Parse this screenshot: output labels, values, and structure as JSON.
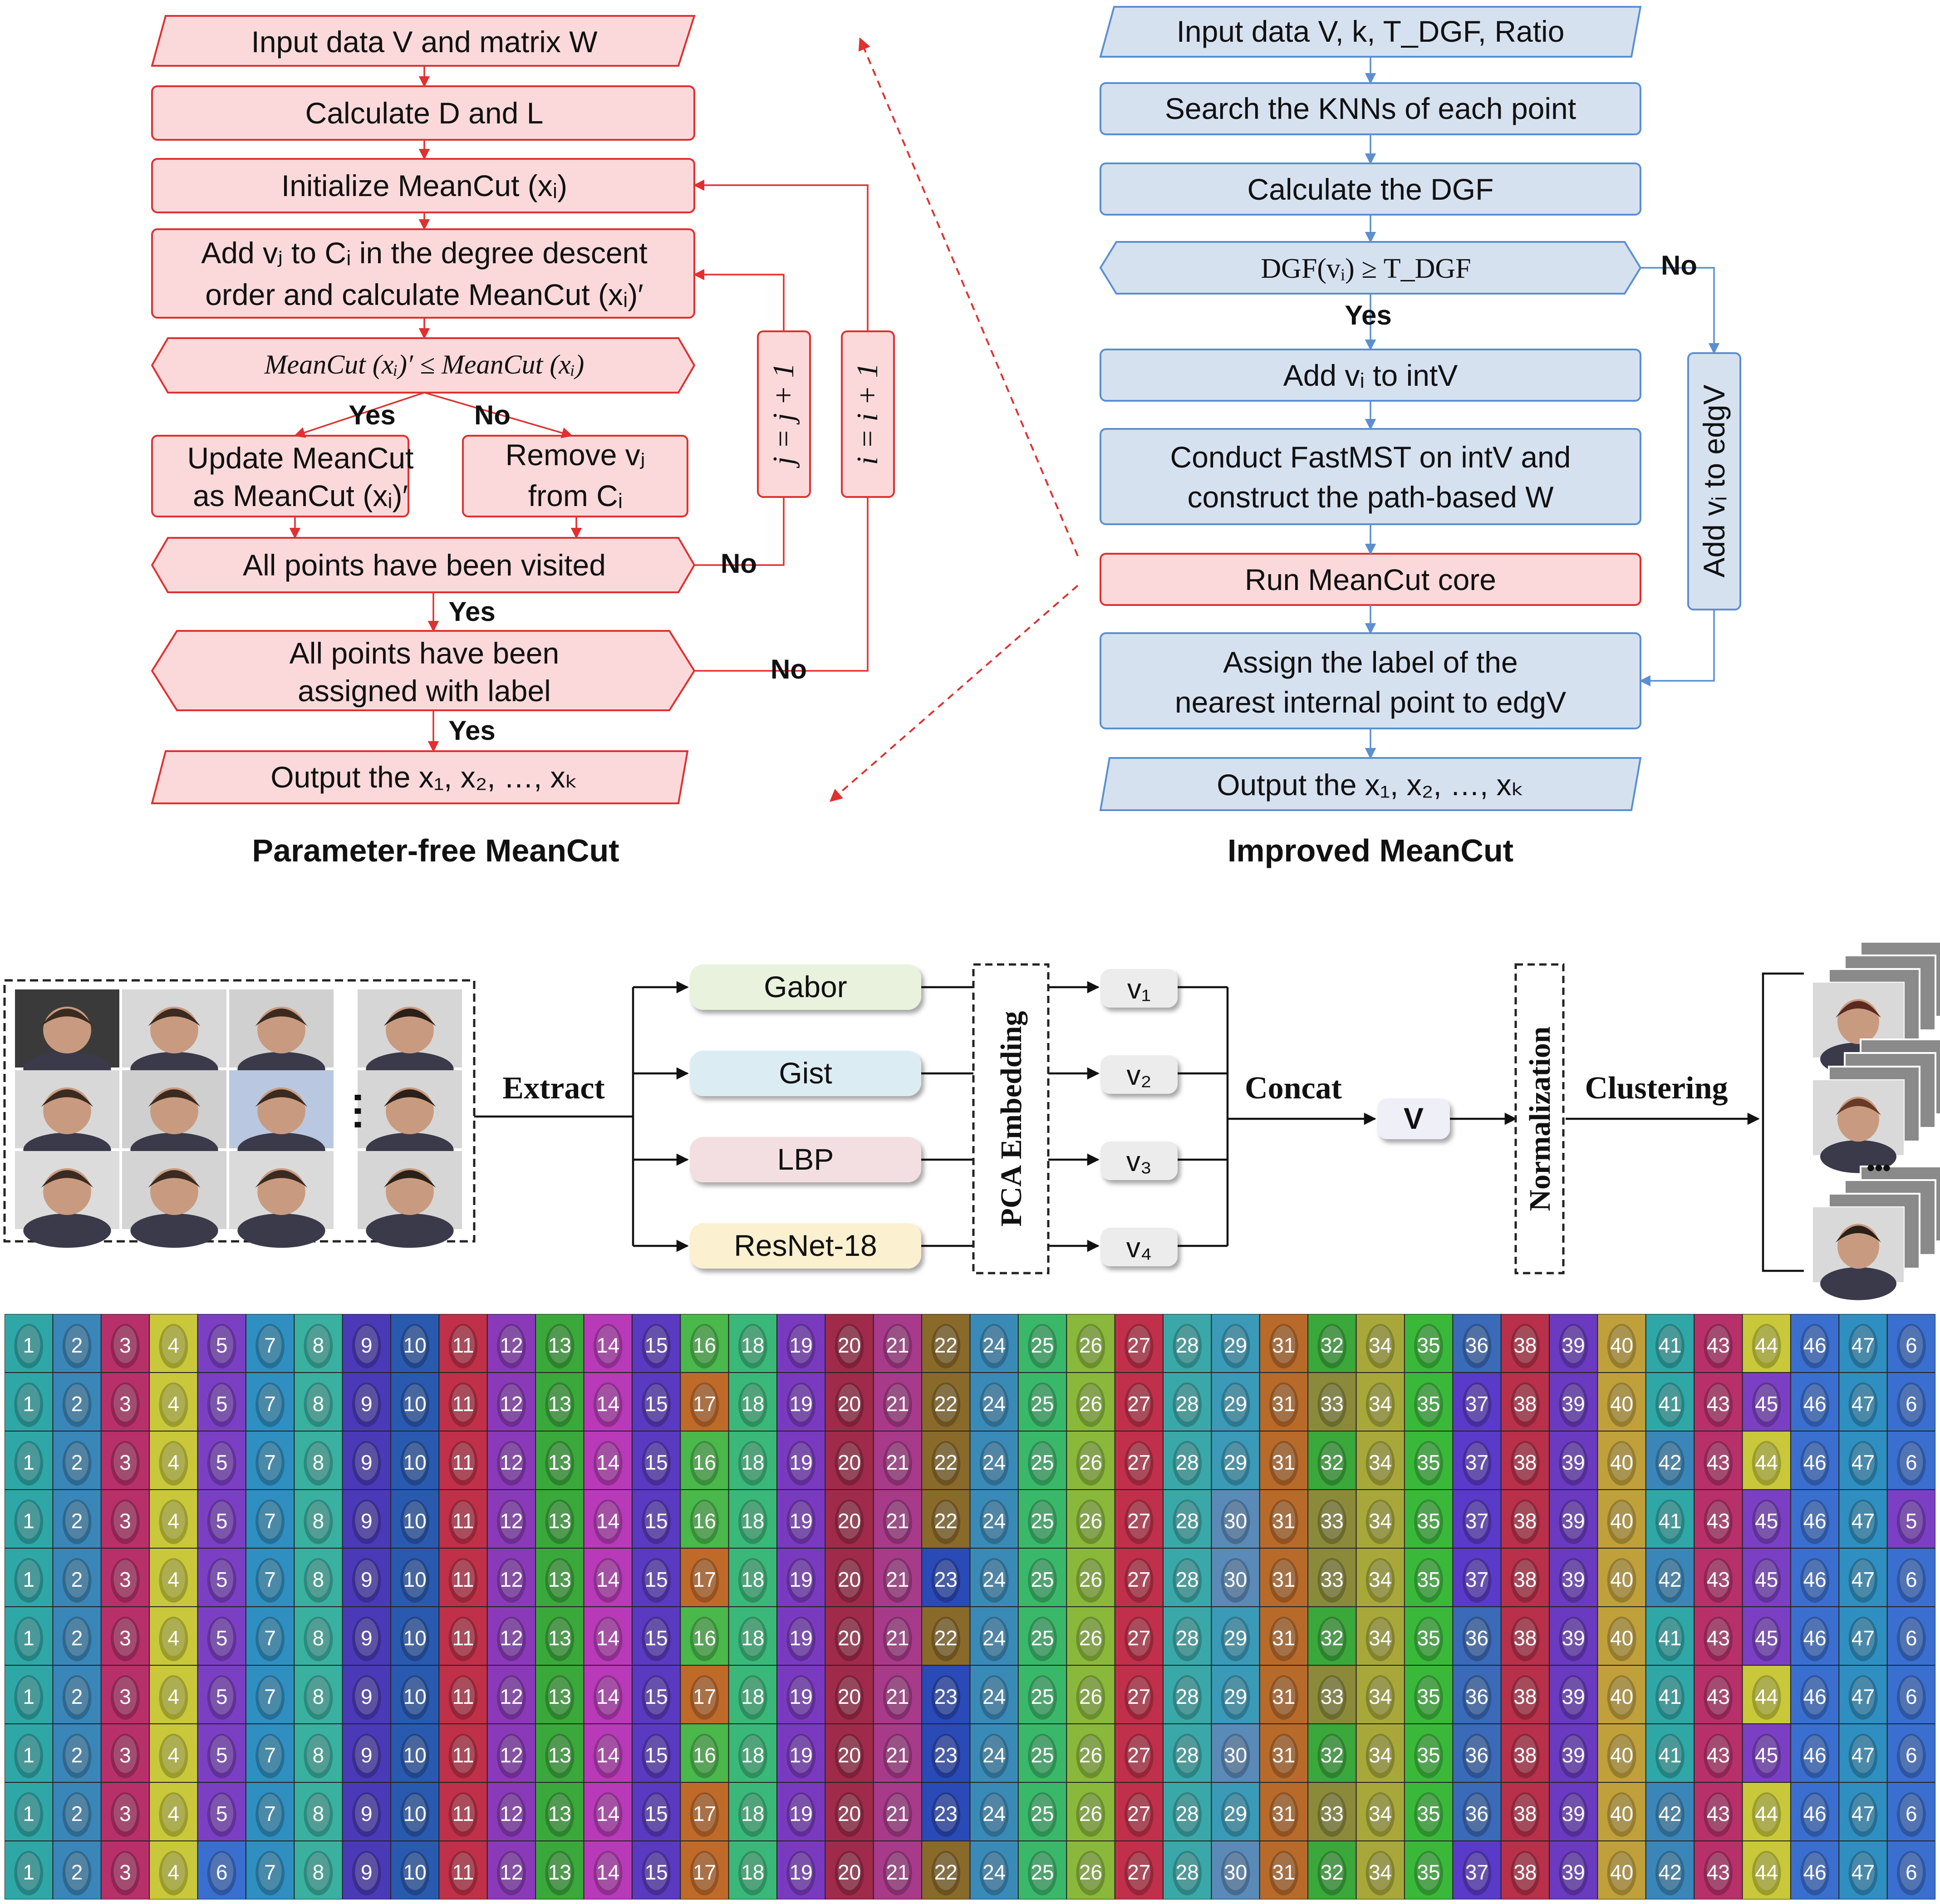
{
  "left_flow": {
    "title": "Parameter-free MeanCut",
    "input": "Input data V and matrix W",
    "calc_dl": "Calculate D and L",
    "init": "Initialize MeanCut (xᵢ)",
    "add_line1": "Add vⱼ to Cᵢ in the degree descent",
    "add_line2": "order and calculate MeanCut (xᵢ)′",
    "cond": "MeanCut (xᵢ)′ ≤ MeanCut (xᵢ)",
    "yes": "Yes",
    "no": "No",
    "update_line1": "Update MeanCut",
    "update_line2": "as MeanCut (xᵢ)′",
    "remove_line1": "Remove vⱼ",
    "remove_line2": "from Cᵢ",
    "visited": "All points have been visited",
    "assigned_line1": "All points have been",
    "assigned_line2": "assigned with label",
    "output": "Output the x₁, x₂, …, xₖ",
    "loop_j": "j = j + 1",
    "loop_i": "i = i + 1"
  },
  "right_flow": {
    "title": "Improved MeanCut",
    "input": "Input data V, k, T_DGF, Ratio",
    "knn": "Search the KNNs of each point",
    "dgf": "Calculate the DGF",
    "cond": "DGF(vᵢ) ≥ T_DGF",
    "yes": "Yes",
    "no": "No",
    "add_int": "Add vᵢ to intV",
    "fastmst_line1": "Conduct FastMST on intV and",
    "fastmst_line2": "construct the path-based W",
    "run_core": "Run MeanCut core",
    "assign_line1": "Assign the label of the",
    "assign_line2": "nearest internal point to edgV",
    "output": "Output the x₁, x₂, …, xₖ",
    "add_edg": "Add vᵢ to edgV"
  },
  "pipeline": {
    "extract": "Extract",
    "features": [
      "Gabor",
      "Gist",
      "LBP",
      "ResNet-18"
    ],
    "feature_colors": [
      "#e8f2dc",
      "#dcecf3",
      "#f3dfe1",
      "#fbf0cf"
    ],
    "pca": "PCA Embedding",
    "vectors": [
      "v₁",
      "v₂",
      "v₃",
      "v₄"
    ],
    "concat": "Concat",
    "v": "V",
    "normalization": "Normalization",
    "clustering": "Clustering",
    "ellipsis": "⋯",
    "dots": "•••"
  },
  "face_grid": {
    "rows": [
      [
        1,
        2,
        3,
        4,
        5,
        7,
        8,
        9,
        10,
        11,
        12,
        13,
        14,
        15,
        16,
        18,
        19,
        20,
        21,
        22,
        24,
        25,
        26,
        27,
        28,
        29,
        31,
        32,
        34,
        35,
        36,
        38,
        39,
        40,
        41,
        43,
        44,
        46,
        47,
        6
      ],
      [
        1,
        2,
        3,
        4,
        5,
        7,
        8,
        9,
        10,
        11,
        12,
        13,
        14,
        15,
        17,
        18,
        19,
        20,
        21,
        22,
        24,
        25,
        26,
        27,
        28,
        29,
        31,
        33,
        34,
        35,
        37,
        38,
        39,
        40,
        41,
        43,
        45,
        46,
        47,
        6
      ],
      [
        1,
        2,
        3,
        4,
        5,
        7,
        8,
        9,
        10,
        11,
        12,
        13,
        14,
        15,
        16,
        18,
        19,
        20,
        21,
        22,
        24,
        25,
        26,
        27,
        28,
        29,
        31,
        32,
        34,
        35,
        37,
        38,
        39,
        40,
        42,
        43,
        44,
        46,
        47,
        6
      ],
      [
        1,
        2,
        3,
        4,
        5,
        7,
        8,
        9,
        10,
        11,
        12,
        13,
        14,
        15,
        16,
        18,
        19,
        20,
        21,
        22,
        24,
        25,
        26,
        27,
        28,
        30,
        31,
        33,
        34,
        35,
        37,
        38,
        39,
        40,
        41,
        43,
        45,
        46,
        47,
        5
      ],
      [
        1,
        2,
        3,
        4,
        5,
        7,
        8,
        9,
        10,
        11,
        12,
        13,
        14,
        15,
        17,
        18,
        19,
        20,
        21,
        23,
        24,
        25,
        26,
        27,
        28,
        30,
        31,
        33,
        34,
        35,
        37,
        38,
        39,
        40,
        42,
        43,
        45,
        46,
        47,
        6
      ],
      [
        1,
        2,
        3,
        4,
        5,
        7,
        8,
        9,
        10,
        11,
        12,
        13,
        14,
        15,
        16,
        18,
        19,
        20,
        21,
        22,
        24,
        25,
        26,
        27,
        28,
        29,
        31,
        32,
        34,
        35,
        36,
        38,
        39,
        40,
        41,
        43,
        45,
        46,
        47,
        6
      ],
      [
        1,
        2,
        3,
        4,
        5,
        7,
        8,
        9,
        10,
        11,
        12,
        13,
        14,
        15,
        17,
        18,
        19,
        20,
        21,
        23,
        24,
        25,
        26,
        27,
        28,
        29,
        31,
        33,
        34,
        35,
        36,
        38,
        39,
        40,
        41,
        43,
        44,
        46,
        47,
        6
      ],
      [
        1,
        2,
        3,
        4,
        5,
        7,
        8,
        9,
        10,
        11,
        12,
        13,
        14,
        15,
        16,
        18,
        19,
        20,
        21,
        23,
        24,
        25,
        26,
        27,
        28,
        30,
        31,
        32,
        34,
        35,
        36,
        38,
        39,
        40,
        41,
        43,
        45,
        46,
        47,
        6
      ],
      [
        1,
        2,
        3,
        4,
        5,
        7,
        8,
        9,
        10,
        11,
        12,
        13,
        14,
        15,
        17,
        18,
        19,
        20,
        21,
        23,
        24,
        25,
        26,
        27,
        28,
        29,
        31,
        33,
        34,
        35,
        36,
        38,
        39,
        40,
        42,
        43,
        44,
        46,
        47,
        6
      ],
      [
        1,
        2,
        3,
        4,
        6,
        7,
        8,
        9,
        10,
        11,
        12,
        13,
        14,
        15,
        17,
        18,
        19,
        20,
        21,
        22,
        24,
        25,
        26,
        27,
        28,
        30,
        31,
        32,
        34,
        35,
        37,
        38,
        39,
        40,
        42,
        43,
        44,
        46,
        47,
        6
      ]
    ],
    "column_colors": [
      "#2fa7a7",
      "#3a86b8",
      "#b8306a",
      "#c8c83a",
      "#7b3fc4",
      "#3a6fd0",
      "#2f8fc0",
      "#3ab0a0",
      "#4a3ab8",
      "#2a5ab0",
      "#c03048",
      "#8a3ab8",
      "#3aa83a",
      "#b83ab8",
      "#5a3ac0",
      "#4ab84a",
      "#c06a2a",
      "#3ab87a",
      "#7a3ac0",
      "#a02a4a",
      "#a83a8a",
      "#8a6a2a",
      "#2a4ab8",
      "#3a8ab8",
      "#3ab86a",
      "#8ab83a",
      "#c0304a",
      "#3aa8a8",
      "#3a9ab8",
      "#5a8ab8",
      "#b86a2a",
      "#3aa83a",
      "#8a8a3a",
      "#a8a83a",
      "#3ab83a",
      "#3a6ab8",
      "#5a3ac8",
      "#b8304a",
      "#6a3ac0",
      "#c0a03a"
    ]
  }
}
